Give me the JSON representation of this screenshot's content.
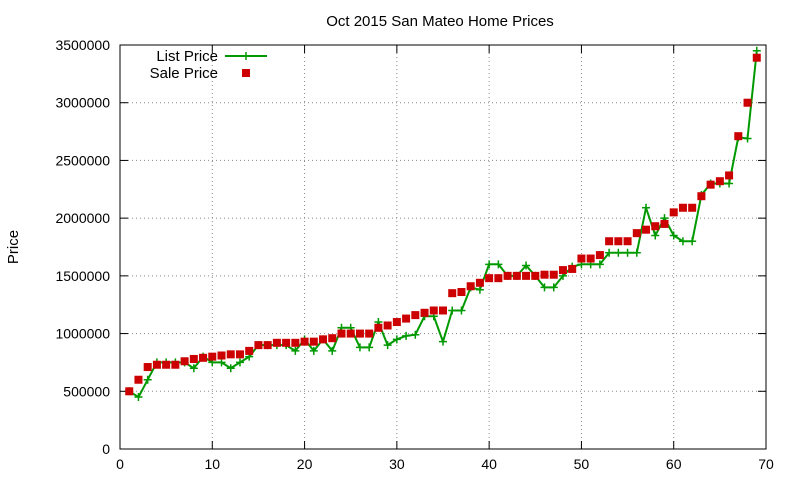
{
  "chart_data": {
    "type": "line",
    "title": "Oct 2015 San Mateo Home Prices",
    "xlabel": "",
    "ylabel": "Price",
    "xlim": [
      0,
      70
    ],
    "ylim": [
      0,
      3500000
    ],
    "x_ticks": [
      0,
      10,
      20,
      30,
      40,
      50,
      60,
      70
    ],
    "y_ticks": [
      0,
      500000,
      1000000,
      1500000,
      2000000,
      2500000,
      3000000,
      3500000
    ],
    "grid": true,
    "legend_position": "top-left",
    "series": [
      {
        "name": "List Price",
        "color": "#009900",
        "marker": "plus",
        "x": [
          1,
          2,
          3,
          4,
          5,
          6,
          7,
          8,
          9,
          10,
          11,
          12,
          13,
          14,
          15,
          16,
          17,
          18,
          19,
          20,
          21,
          22,
          23,
          24,
          25,
          26,
          27,
          28,
          29,
          30,
          31,
          32,
          33,
          34,
          35,
          36,
          37,
          38,
          39,
          40,
          41,
          42,
          43,
          44,
          45,
          46,
          47,
          48,
          49,
          50,
          51,
          52,
          53,
          54,
          55,
          56,
          57,
          58,
          59,
          60,
          61,
          62,
          63,
          64,
          65,
          66,
          67,
          68,
          69
        ],
        "values": [
          500000,
          450000,
          600000,
          750000,
          750000,
          750000,
          750000,
          700000,
          800000,
          750000,
          750000,
          700000,
          750000,
          800000,
          900000,
          900000,
          900000,
          900000,
          850000,
          950000,
          850000,
          950000,
          850000,
          1050000,
          1050000,
          880000,
          880000,
          1100000,
          900000,
          950000,
          980000,
          990000,
          1150000,
          1150000,
          930000,
          1200000,
          1200000,
          1400000,
          1380000,
          1600000,
          1600000,
          1500000,
          1500000,
          1590000,
          1500000,
          1400000,
          1400000,
          1500000,
          1580000,
          1600000,
          1600000,
          1600000,
          1700000,
          1700000,
          1700000,
          1700000,
          2090000,
          1850000,
          2000000,
          1850000,
          1800000,
          1800000,
          2200000,
          2300000,
          2300000,
          2300000,
          2700000,
          2690000,
          3450000
        ]
      },
      {
        "name": "Sale Price",
        "color": "#cc0000",
        "marker": "square",
        "x": [
          1,
          2,
          3,
          4,
          5,
          6,
          7,
          8,
          9,
          10,
          11,
          12,
          13,
          14,
          15,
          16,
          17,
          18,
          19,
          20,
          21,
          22,
          23,
          24,
          25,
          26,
          27,
          28,
          29,
          30,
          31,
          32,
          33,
          34,
          35,
          36,
          37,
          38,
          39,
          40,
          41,
          42,
          43,
          44,
          45,
          46,
          47,
          48,
          49,
          50,
          51,
          52,
          53,
          54,
          55,
          56,
          57,
          58,
          59,
          60,
          61,
          62,
          63,
          64,
          65,
          66,
          67,
          68,
          69
        ],
        "values": [
          500000,
          600000,
          710000,
          730000,
          730000,
          730000,
          760000,
          780000,
          790000,
          800000,
          810000,
          820000,
          820000,
          850000,
          900000,
          900000,
          920000,
          920000,
          920000,
          930000,
          930000,
          950000,
          960000,
          1000000,
          1000000,
          1000000,
          1000000,
          1050000,
          1070000,
          1100000,
          1130000,
          1160000,
          1180000,
          1200000,
          1200000,
          1350000,
          1360000,
          1410000,
          1440000,
          1480000,
          1480000,
          1500000,
          1500000,
          1500000,
          1500000,
          1510000,
          1510000,
          1550000,
          1560000,
          1650000,
          1650000,
          1680000,
          1800000,
          1800000,
          1800000,
          1870000,
          1900000,
          1930000,
          1950000,
          2050000,
          2090000,
          2090000,
          2190000,
          2290000,
          2320000,
          2370000,
          2710000,
          3000000,
          3390000
        ]
      }
    ]
  }
}
